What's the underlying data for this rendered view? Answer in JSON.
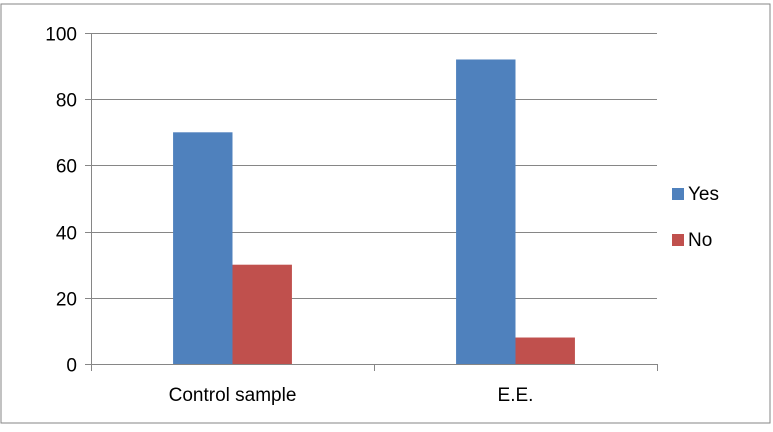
{
  "chart_data": {
    "type": "bar",
    "title": "",
    "xlabel": "",
    "ylabel": "",
    "categories": [
      "Control sample",
      "E.E."
    ],
    "series": [
      {
        "name": "Yes",
        "values": [
          70,
          92
        ],
        "color": "#4F81BD"
      },
      {
        "name": "No",
        "values": [
          30,
          8
        ],
        "color": "#C0504D"
      }
    ],
    "ylim": [
      0,
      100
    ],
    "yticks": [
      0,
      20,
      40,
      60,
      80,
      100
    ],
    "ytick_labels": [
      "0",
      "20",
      "40",
      "60",
      "80",
      "100"
    ],
    "grid": "horizontal",
    "legend_position": "right",
    "frame_border_color": "#868686",
    "gridline_color": "#868686"
  }
}
